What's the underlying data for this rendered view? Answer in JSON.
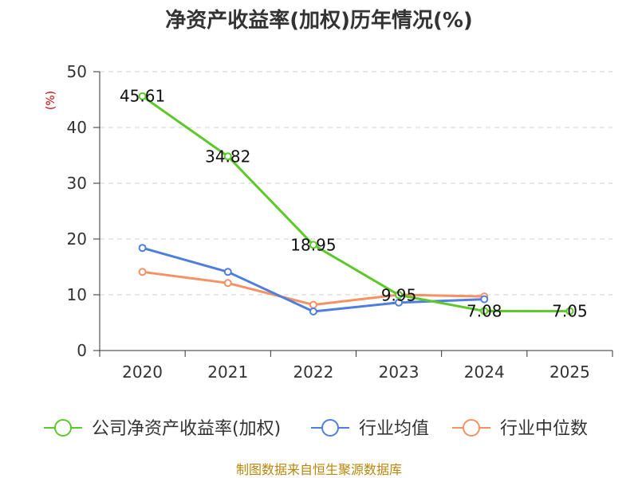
{
  "chart_data": {
    "type": "line",
    "title": "净资产收益率(加权)历年情况(%)",
    "xlabel": "",
    "ylabel": "(%)",
    "categories": [
      "2020",
      "2021",
      "2022",
      "2023",
      "2024",
      "2025"
    ],
    "ylim": [
      0,
      50
    ],
    "yticks": [
      0,
      10,
      20,
      30,
      40,
      50
    ],
    "grid": true,
    "legend_position": "bottom",
    "series": [
      {
        "name": "公司净资产收益率(加权)",
        "color": "#5cc92a",
        "values": [
          45.61,
          34.82,
          18.95,
          9.95,
          7.08,
          7.05
        ],
        "labels": [
          "45.61",
          "34.82",
          "18.95",
          "9.95",
          "7.08",
          "7.05"
        ]
      },
      {
        "name": "行业均值",
        "color": "#4e7fdc",
        "values": [
          18.4,
          14.1,
          7.0,
          8.6,
          9.2,
          null
        ]
      },
      {
        "name": "行业中位数",
        "color": "#f49263",
        "values": [
          14.1,
          12.1,
          8.2,
          10.0,
          9.7,
          null
        ]
      }
    ],
    "source": "制图数据来自恒生聚源数据库"
  }
}
